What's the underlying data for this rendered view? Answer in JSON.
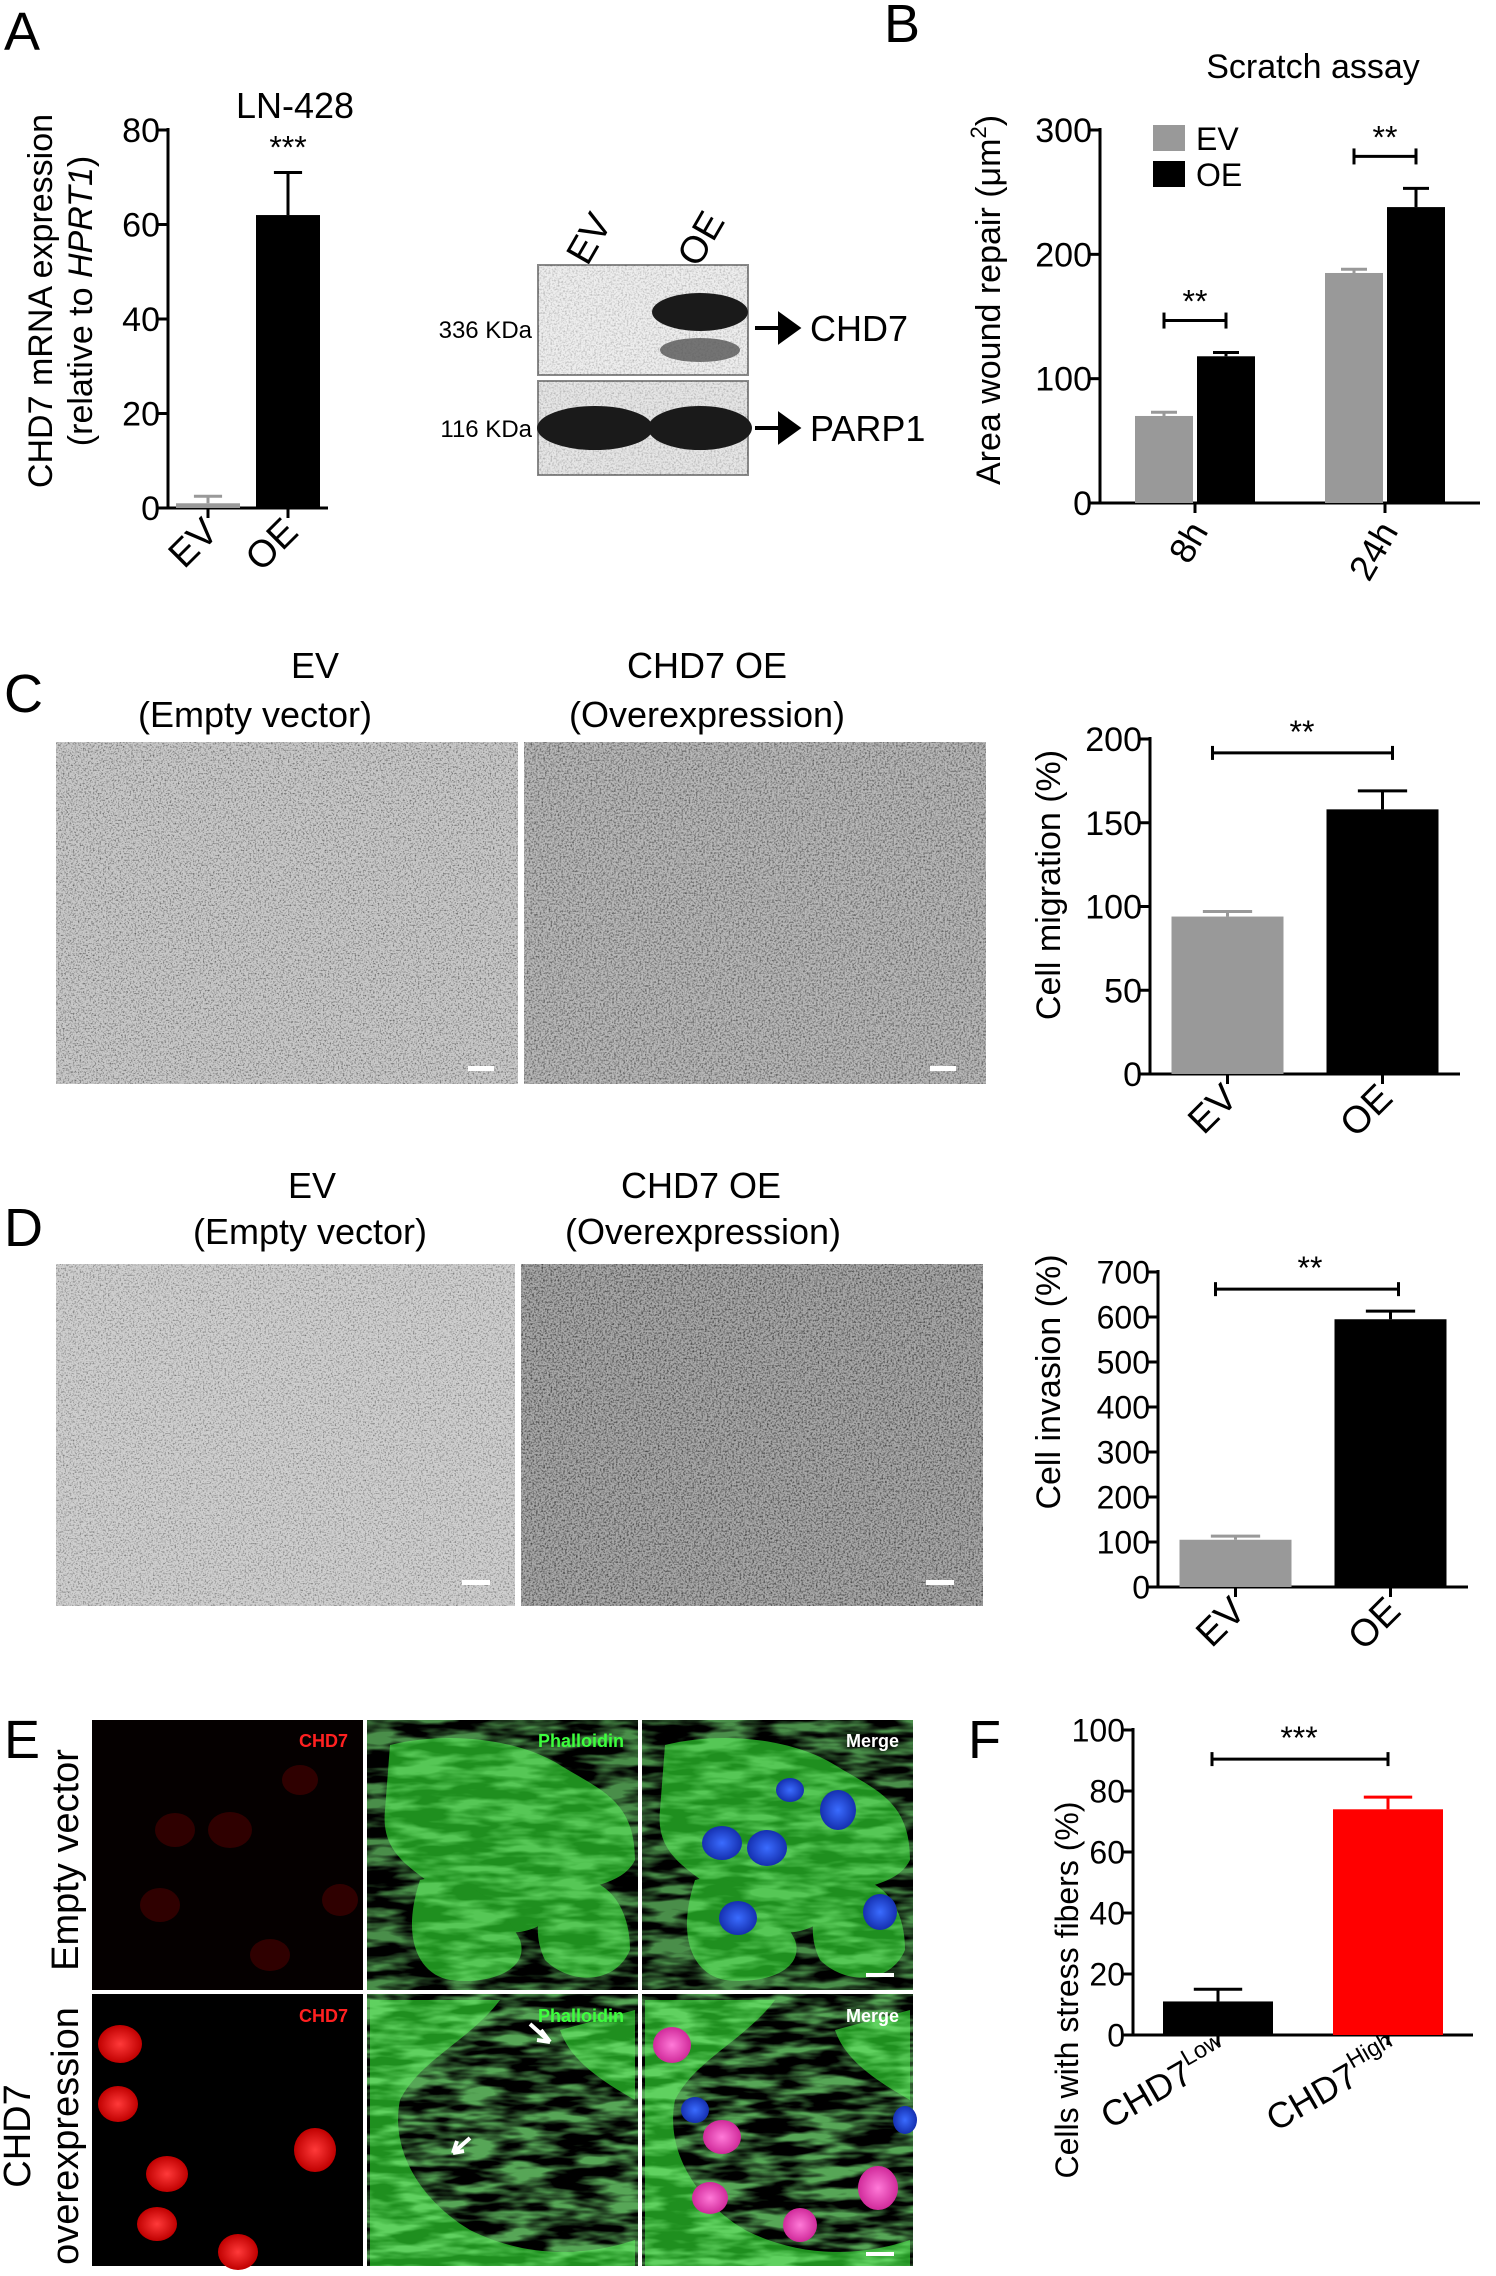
{
  "colors": {
    "ev_gray": "#999999",
    "oe_black": "#000000",
    "high_red": "#ff0000",
    "chd7_text": "#ff2020",
    "phalloidin_text": "#3dff3d",
    "merge_text": "#ffffff"
  },
  "panel_letters": [
    "A",
    "B",
    "C",
    "D",
    "E",
    "F"
  ],
  "panelA": {
    "title": "LN-428",
    "ylabel_line1": "CHD7 mRNA expression",
    "ylabel_line2_prefix": "(relative to ",
    "ylabel_line2_italic": "HPRT1",
    "ylabel_line2_suffix": ")",
    "western": {
      "lanes": [
        "EV",
        "OE"
      ],
      "rows": [
        {
          "size": "336 KDa",
          "protein": "CHD7"
        },
        {
          "size": "116 KDa",
          "protein": "PARP1"
        }
      ]
    }
  },
  "panelC": {
    "image_labels": [
      {
        "line1": "EV",
        "line2": "(Empty vector)"
      },
      {
        "line1": "CHD7 OE",
        "line2": "(Overexpression)"
      }
    ]
  },
  "panelD": {
    "image_labels": [
      {
        "line1": "EV",
        "line2": "(Empty vector)"
      },
      {
        "line1": "CHD7 OE",
        "line2": "(Overexpression)"
      }
    ]
  },
  "panelE": {
    "row_labels": [
      {
        "line1": "Empty vector",
        "line2": ""
      },
      {
        "line1": "CHD7",
        "line2": "overexpression"
      }
    ],
    "channel_labels": [
      "CHD7",
      "Phalloidin",
      "Merge"
    ],
    "scale_label": "20 μm"
  },
  "chart_data": [
    {
      "id": "A",
      "type": "bar",
      "title": "LN-428",
      "categories": [
        "EV",
        "OE"
      ],
      "values": [
        1,
        62
      ],
      "errors": [
        1.5,
        9
      ],
      "ylim": [
        0,
        80
      ],
      "yticks": [
        0,
        20,
        40,
        60,
        80
      ],
      "ylabel": "CHD7 mRNA expression (relative to HPRT1)",
      "significance": [
        "***"
      ]
    },
    {
      "id": "B",
      "type": "bar",
      "title": "Scratch assay",
      "categories": [
        "8h",
        "24h"
      ],
      "series": [
        {
          "name": "EV",
          "values": [
            70,
            185
          ],
          "errors": [
            3,
            3
          ]
        },
        {
          "name": "OE",
          "values": [
            118,
            238
          ],
          "errors": [
            3,
            15
          ]
        }
      ],
      "ylim": [
        0,
        300
      ],
      "yticks": [
        0,
        100,
        200,
        300
      ],
      "ylabel": "Area wound repair (μm²)",
      "legend": "top-left",
      "significance": [
        "**",
        "**"
      ]
    },
    {
      "id": "C",
      "type": "bar",
      "categories": [
        "EV",
        "OE"
      ],
      "values": [
        94,
        158
      ],
      "errors": [
        3,
        11
      ],
      "ylim": [
        0,
        200
      ],
      "yticks": [
        0,
        50,
        100,
        150,
        200
      ],
      "ylabel": "Cell migration (%)",
      "significance": [
        "**"
      ]
    },
    {
      "id": "D",
      "type": "bar",
      "categories": [
        "EV",
        "OE"
      ],
      "values": [
        105,
        595
      ],
      "errors": [
        8,
        18
      ],
      "ylim": [
        0,
        700
      ],
      "yticks": [
        0,
        100,
        200,
        300,
        400,
        500,
        600,
        700
      ],
      "ylabel": "Cell invasion (%)",
      "significance": [
        "**"
      ]
    },
    {
      "id": "F",
      "type": "bar",
      "categories": [
        "CHD7Low",
        "CHD7High"
      ],
      "category_base": [
        "CHD7",
        "CHD7"
      ],
      "category_sup": [
        "Low",
        "High"
      ],
      "values": [
        11,
        74
      ],
      "errors": [
        4,
        4
      ],
      "ylim": [
        0,
        100
      ],
      "yticks": [
        0,
        20,
        40,
        60,
        80,
        100
      ],
      "ylabel": "Cells with stress fibers (%)",
      "significance": [
        "***"
      ]
    }
  ]
}
